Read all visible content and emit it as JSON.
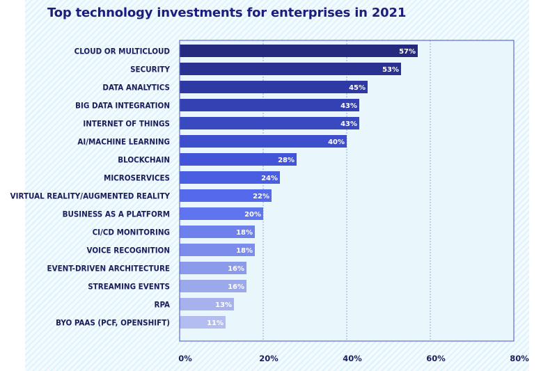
{
  "chart_data": {
    "type": "bar",
    "orientation": "horizontal",
    "title": "Top technology investments for enterprises in 2021",
    "categories": [
      "CLOUD OR MULTICLOUD",
      "SECURITY",
      "DATA ANALYTICS",
      "BIG DATA INTEGRATION",
      "INTERNET OF THINGS",
      "AI/MACHINE LEARNING",
      "BLOCKCHAIN",
      "MICROSERVICES",
      "VIRTUAL REALITY/AUGMENTED REALITY",
      "BUSINESS AS A PLATFORM",
      "CI/CD MONITORING",
      "VOICE RECOGNITION",
      "EVENT-DRIVEN ARCHITECTURE",
      "STREAMING EVENTS",
      "RPA",
      "BYO PAAS (PCF, OPENSHIFT)"
    ],
    "values": [
      57,
      53,
      45,
      43,
      43,
      40,
      28,
      24,
      22,
      20,
      18,
      18,
      16,
      16,
      13,
      11
    ],
    "value_labels": [
      "57%",
      "53%",
      "45%",
      "43%",
      "43%",
      "40%",
      "28%",
      "24%",
      "22%",
      "20%",
      "18%",
      "18%",
      "16%",
      "16%",
      "13%",
      "11%"
    ],
    "xlim": [
      0,
      80
    ],
    "xticks": [
      0,
      20,
      40,
      60,
      80
    ],
    "xtick_labels": [
      "0%",
      "20%",
      "40%",
      "60%",
      "80%"
    ],
    "grid": true,
    "colors": {
      "title": "#1c1d7c",
      "label": "#1c1d5c",
      "axis": "#5b6ad6",
      "gridline": "#8fa0e6",
      "plot_bg": "#e9f7fd",
      "bar_gradient": [
        "#262a7e",
        "#2f3aa6",
        "#3a4bc4",
        "#4458dd",
        "#5a6ff0",
        "#7788ea",
        "#99a6ea",
        "#b4bdef"
      ]
    }
  }
}
